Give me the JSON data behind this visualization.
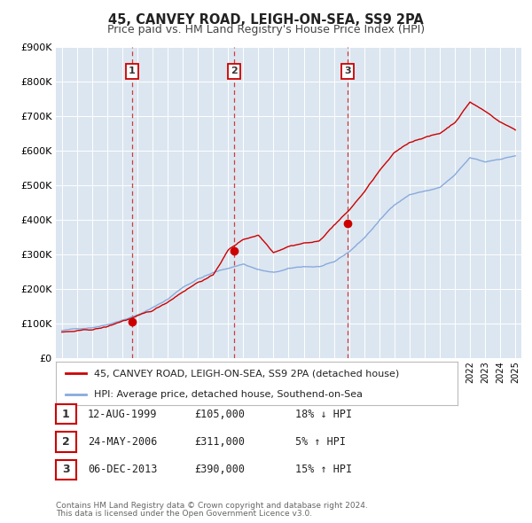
{
  "title": "45, CANVEY ROAD, LEIGH-ON-SEA, SS9 2PA",
  "subtitle": "Price paid vs. HM Land Registry's House Price Index (HPI)",
  "ylim": [
    0,
    900000
  ],
  "yticks": [
    0,
    100000,
    200000,
    300000,
    400000,
    500000,
    600000,
    700000,
    800000,
    900000
  ],
  "ytick_labels": [
    "£0",
    "£100K",
    "£200K",
    "£300K",
    "£400K",
    "£500K",
    "£600K",
    "£700K",
    "£800K",
    "£900K"
  ],
  "xlim_start": 1994.6,
  "xlim_end": 2025.4,
  "sale_color": "#cc0000",
  "hpi_color": "#88aadd",
  "sale_label": "45, CANVEY ROAD, LEIGH-ON-SEA, SS9 2PA (detached house)",
  "hpi_label": "HPI: Average price, detached house, Southend-on-Sea",
  "purchases": [
    {
      "year": 1999.617,
      "price": 105000,
      "label": "1"
    },
    {
      "year": 2006.392,
      "price": 311000,
      "label": "2"
    },
    {
      "year": 2013.922,
      "price": 390000,
      "label": "3"
    }
  ],
  "table_rows": [
    {
      "num": "1",
      "date": "12-AUG-1999",
      "price": "£105,000",
      "hpi": "18% ↓ HPI"
    },
    {
      "num": "2",
      "date": "24-MAY-2006",
      "price": "£311,000",
      "hpi": "5% ↑ HPI"
    },
    {
      "num": "3",
      "date": "06-DEC-2013",
      "price": "£390,000",
      "hpi": "15% ↑ HPI"
    }
  ],
  "footnote1": "Contains HM Land Registry data © Crown copyright and database right 2024.",
  "footnote2": "This data is licensed under the Open Government Licence v3.0.",
  "bg_color": "#dce6f0",
  "hpi_base_vals": [
    80000,
    84000,
    90000,
    100000,
    115000,
    130000,
    150000,
    175000,
    210000,
    235000,
    252000,
    265000,
    278000,
    262000,
    252000,
    262000,
    268000,
    268000,
    278000,
    308000,
    348000,
    398000,
    445000,
    475000,
    485000,
    495000,
    530000,
    578000,
    565000,
    575000,
    585000
  ],
  "sale_base_vals": [
    75000,
    77000,
    80000,
    88000,
    105000,
    118000,
    132000,
    158000,
    190000,
    218000,
    238000,
    311000,
    342000,
    356000,
    308000,
    328000,
    338000,
    342000,
    390000,
    432000,
    485000,
    545000,
    595000,
    625000,
    642000,
    652000,
    685000,
    745000,
    718000,
    688000,
    665000
  ]
}
